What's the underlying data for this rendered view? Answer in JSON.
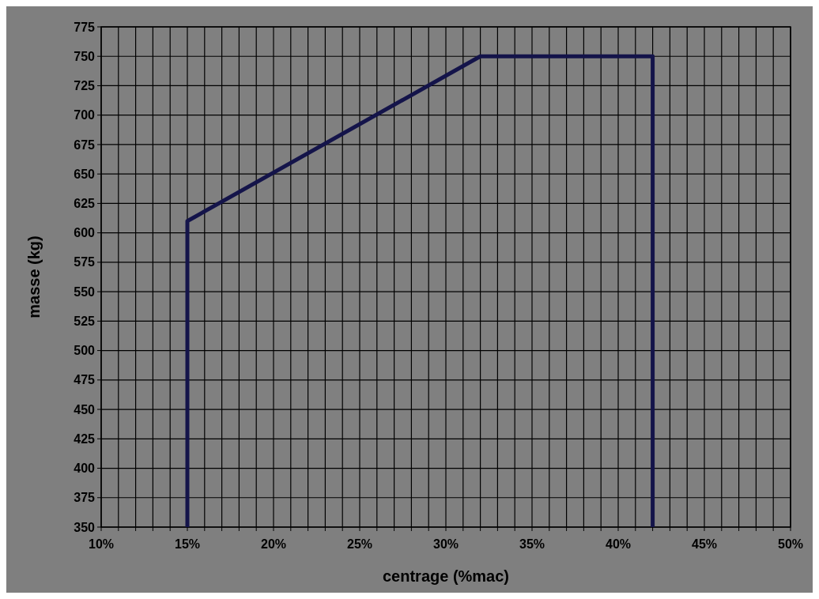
{
  "chart_data": {
    "type": "line",
    "xlabel": "centrage (%mac)",
    "ylabel": "masse (kg)",
    "xlim": [
      10,
      50
    ],
    "ylim": [
      350,
      775
    ],
    "xticks": [
      {
        "value": 10,
        "label": "10%"
      },
      {
        "value": 11,
        "label": null
      },
      {
        "value": 12,
        "label": null
      },
      {
        "value": 13,
        "label": null
      },
      {
        "value": 14,
        "label": null
      },
      {
        "value": 15,
        "label": "15%"
      },
      {
        "value": 16,
        "label": null
      },
      {
        "value": 17,
        "label": null
      },
      {
        "value": 18,
        "label": null
      },
      {
        "value": 19,
        "label": null
      },
      {
        "value": 20,
        "label": "20%"
      },
      {
        "value": 21,
        "label": null
      },
      {
        "value": 22,
        "label": null
      },
      {
        "value": 23,
        "label": null
      },
      {
        "value": 24,
        "label": null
      },
      {
        "value": 25,
        "label": "25%"
      },
      {
        "value": 26,
        "label": null
      },
      {
        "value": 27,
        "label": null
      },
      {
        "value": 28,
        "label": null
      },
      {
        "value": 29,
        "label": null
      },
      {
        "value": 30,
        "label": "30%"
      },
      {
        "value": 31,
        "label": null
      },
      {
        "value": 32,
        "label": null
      },
      {
        "value": 33,
        "label": null
      },
      {
        "value": 34,
        "label": null
      },
      {
        "value": 35,
        "label": "35%"
      },
      {
        "value": 36,
        "label": null
      },
      {
        "value": 37,
        "label": null
      },
      {
        "value": 38,
        "label": null
      },
      {
        "value": 39,
        "label": null
      },
      {
        "value": 40,
        "label": "40%"
      },
      {
        "value": 41,
        "label": null
      },
      {
        "value": 42,
        "label": null
      },
      {
        "value": 43,
        "label": null
      },
      {
        "value": 44,
        "label": null
      },
      {
        "value": 45,
        "label": "45%"
      },
      {
        "value": 46,
        "label": null
      },
      {
        "value": 47,
        "label": null
      },
      {
        "value": 48,
        "label": null
      },
      {
        "value": 49,
        "label": null
      },
      {
        "value": 50,
        "label": "50%"
      }
    ],
    "yticks": [
      350,
      375,
      400,
      425,
      450,
      475,
      500,
      525,
      550,
      575,
      600,
      625,
      650,
      675,
      700,
      725,
      750,
      775
    ],
    "grid": true,
    "marker": "none",
    "line_style": "solid",
    "series": [
      {
        "color": "#14144a",
        "x": [
          15,
          15,
          32,
          42,
          42
        ],
        "values": [
          350,
          610,
          750,
          750,
          350
        ]
      }
    ]
  }
}
